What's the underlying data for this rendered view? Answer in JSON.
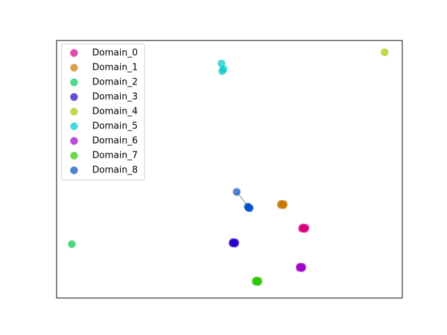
{
  "chart_data": {
    "type": "scatter",
    "xlim": [
      0,
      100
    ],
    "ylim": [
      0,
      100
    ],
    "legend": "upper left",
    "series": [
      {
        "name": "Domain_0",
        "color": "#d6007f",
        "x": [
          71.2,
          71.8,
          71.5,
          71.0,
          72.0
        ],
        "y": [
          27.4,
          26.8,
          27.1,
          26.9,
          27.3
        ]
      },
      {
        "name": "Domain_1",
        "color": "#c87800",
        "x": [
          65.0,
          65.6,
          65.3,
          64.9,
          65.7
        ],
        "y": [
          36.6,
          36.0,
          36.3,
          36.1,
          36.5
        ]
      },
      {
        "name": "Domain_2",
        "color": "#00c850",
        "x": [
          4.4
        ],
        "y": [
          20.9
        ]
      },
      {
        "name": "Domain_3",
        "color": "#2a00c8",
        "x": [
          51.0,
          51.6,
          51.3,
          50.9,
          51.7
        ],
        "y": [
          21.7,
          21.1,
          21.4,
          21.2,
          21.6
        ]
      },
      {
        "name": "Domain_4",
        "color": "#a8c800",
        "x": [
          94.9
        ],
        "y": [
          95.4
        ]
      },
      {
        "name": "Domain_5",
        "color": "#00c8c8",
        "x": [
          47.7,
          48.3,
          47.9
        ],
        "y": [
          91.1,
          88.9,
          88.1
        ]
      },
      {
        "name": "Domain_6",
        "color": "#a000c8",
        "x": [
          70.4,
          71.0,
          70.7,
          70.3,
          71.1
        ],
        "y": [
          12.2,
          11.6,
          11.9,
          11.7,
          12.1
        ]
      },
      {
        "name": "Domain_7",
        "color": "#28c800",
        "x": [
          57.7,
          58.3,
          58.0,
          57.6,
          58.4
        ],
        "y": [
          6.8,
          6.2,
          6.5,
          6.3,
          6.7
        ]
      },
      {
        "name": "Domain_8",
        "color": "#0050c8",
        "x": [
          52.1,
          55.6,
          55.3,
          55.9,
          55.5
        ],
        "y": [
          41.2,
          35.2,
          35.5,
          34.9,
          35.0
        ]
      }
    ]
  }
}
